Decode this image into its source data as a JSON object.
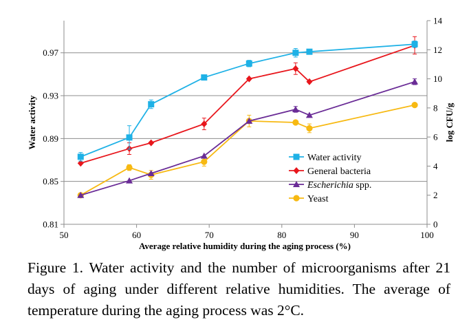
{
  "chart_data": {
    "type": "line",
    "title": "",
    "xlabel": "Average relative humidity during the aging process (%)",
    "ylabel": "Water activity",
    "y2label": "log CFU/g",
    "xlim": [
      50,
      100
    ],
    "ylim": [
      0.81,
      1.0
    ],
    "y2lim": [
      0,
      14
    ],
    "x_ticks": [
      "50",
      "60",
      "70",
      "80",
      "90",
      "100"
    ],
    "y_ticks": [
      "0.81",
      "0.85",
      "0.89",
      "0.93",
      "0.97"
    ],
    "y2_ticks": [
      "0",
      "2",
      "4",
      "6",
      "8",
      "10",
      "12",
      "14"
    ],
    "grid": "horizontal",
    "legend_position": "right-center",
    "series": [
      {
        "name": "Water activity",
        "axis": "left",
        "color": "#1EB1E6",
        "marker": "square",
        "points": [
          {
            "x": 52.3,
            "y": 0.873,
            "err": 0.004
          },
          {
            "x": 59.0,
            "y": 0.891,
            "err": 0.011
          },
          {
            "x": 62.0,
            "y": 0.922,
            "err": 0.004
          },
          {
            "x": 69.3,
            "y": 0.947,
            "err": 0.0
          },
          {
            "x": 75.5,
            "y": 0.96,
            "err": 0.003
          },
          {
            "x": 81.9,
            "y": 0.97,
            "err": 0.004
          },
          {
            "x": 83.8,
            "y": 0.971,
            "err": 0.002
          },
          {
            "x": 98.3,
            "y": 0.978,
            "err": 0.003
          }
        ]
      },
      {
        "name": "General bacteria",
        "axis": "right",
        "color": "#E8161C",
        "marker": "diamond",
        "points": [
          {
            "x": 52.3,
            "y": 4.2,
            "err": 0.0
          },
          {
            "x": 59.0,
            "y": 5.2,
            "err": 0.4
          },
          {
            "x": 62.0,
            "y": 5.6,
            "err": 0.0
          },
          {
            "x": 69.3,
            "y": 6.9,
            "err": 0.4
          },
          {
            "x": 75.5,
            "y": 10.0,
            "err": 0.0
          },
          {
            "x": 81.9,
            "y": 10.7,
            "err": 0.4
          },
          {
            "x": 83.8,
            "y": 9.8,
            "err": 0.0
          },
          {
            "x": 98.3,
            "y": 12.3,
            "err": 0.6
          }
        ]
      },
      {
        "name": "Escherichia spp.",
        "name_italic": "Escherichia",
        "name_rest": " spp.",
        "axis": "right",
        "color": "#6A2C96",
        "marker": "triangle",
        "points": [
          {
            "x": 52.3,
            "y": 2.0,
            "err": 0.0
          },
          {
            "x": 59.0,
            "y": 3.0,
            "err": 0.0
          },
          {
            "x": 62.0,
            "y": 3.5,
            "err": 0.0
          },
          {
            "x": 69.3,
            "y": 4.7,
            "err": 0.0
          },
          {
            "x": 75.5,
            "y": 7.1,
            "err": 0.0
          },
          {
            "x": 81.9,
            "y": 7.9,
            "err": 0.2
          },
          {
            "x": 83.8,
            "y": 7.5,
            "err": 0.0
          },
          {
            "x": 98.3,
            "y": 9.8,
            "err": 0.2
          }
        ]
      },
      {
        "name": "Yeast",
        "axis": "right",
        "color": "#F7B912",
        "marker": "circle",
        "points": [
          {
            "x": 52.3,
            "y": 2.0,
            "err": 0.0
          },
          {
            "x": 59.0,
            "y": 3.9,
            "err": 0.2
          },
          {
            "x": 62.0,
            "y": 3.4,
            "err": 0.3
          },
          {
            "x": 69.3,
            "y": 4.3,
            "err": 0.3
          },
          {
            "x": 75.5,
            "y": 7.1,
            "err": 0.4
          },
          {
            "x": 81.9,
            "y": 7.0,
            "err": 0.0
          },
          {
            "x": 83.8,
            "y": 6.6,
            "err": 0.3
          },
          {
            "x": 98.3,
            "y": 8.2,
            "err": 0.0
          }
        ]
      }
    ]
  },
  "caption": "Figure 1. Water activity and the number of microorganisms after 21 days of aging under different relative humidities. The average of temperature during the aging process was 2°C."
}
